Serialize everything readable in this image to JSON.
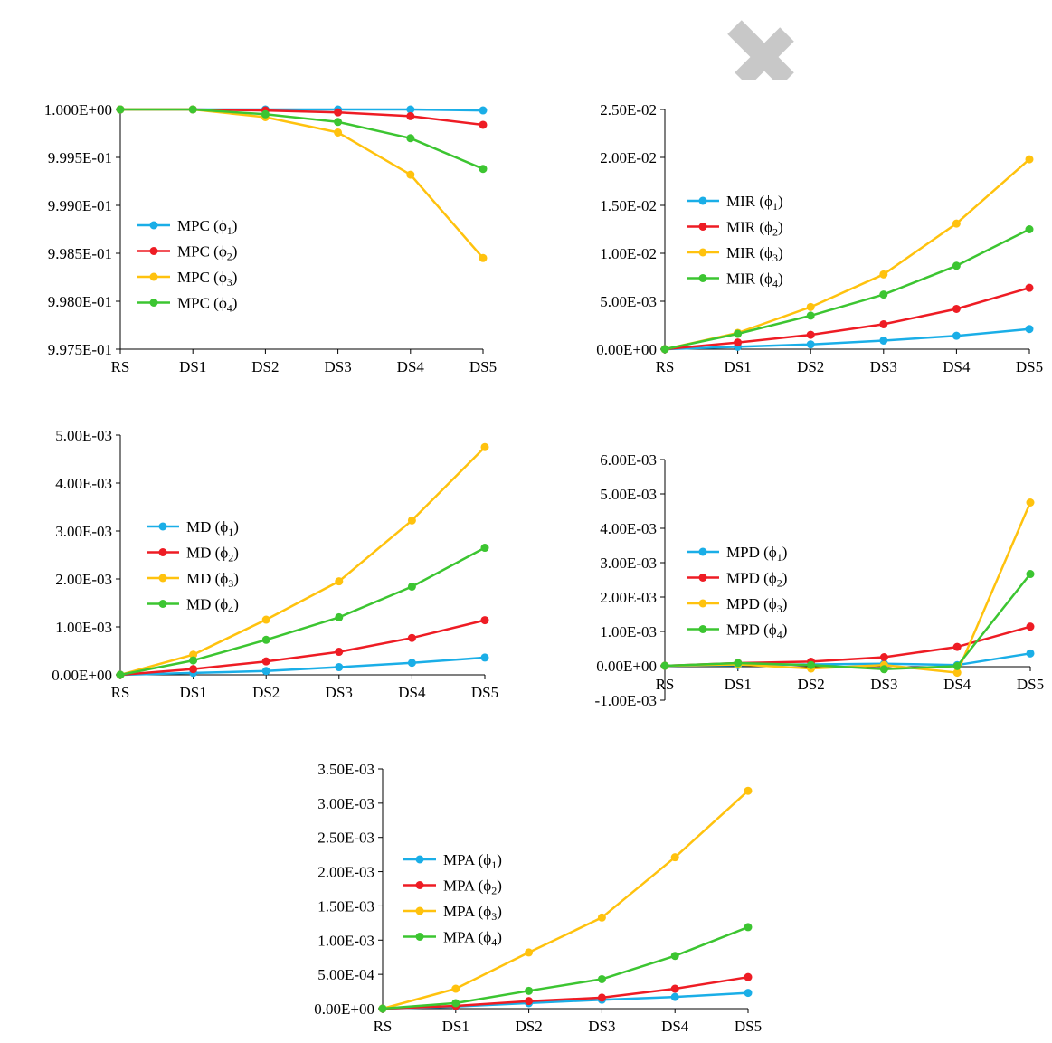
{
  "decoration": {
    "name": "partial-cross-mark",
    "color": "#c8c8c8"
  },
  "chart_data": [
    {
      "type": "line",
      "categories": [
        "RS",
        "DS1",
        "DS2",
        "DS3",
        "DS4",
        "DS5"
      ],
      "ylim": [
        0.9975,
        1.0
      ],
      "yticks": [
        0.9975,
        0.998,
        0.9985,
        0.999,
        0.9995,
        1.0
      ],
      "ytick_labels": [
        "9.975E-01",
        "9.980E-01",
        "9.985E-01",
        "9.990E-01",
        "9.995E-01",
        "1.000E+00"
      ],
      "legend_position": "left-middle",
      "grid": false,
      "series": [
        {
          "name": "MPC (ϕ1)",
          "base": "MPC (ϕ",
          "sub": "1",
          "color": "#1aaee7",
          "values": [
            1.0,
            1.0,
            1.0,
            1.0,
            1.0,
            0.99999
          ]
        },
        {
          "name": "MPC (ϕ2)",
          "base": "MPC (ϕ",
          "sub": "2",
          "color": "#ee1c24",
          "values": [
            1.0,
            1.0,
            0.99999,
            0.99997,
            0.99993,
            0.99984
          ]
        },
        {
          "name": "MPC (ϕ3)",
          "base": "MPC (ϕ",
          "sub": "3",
          "color": "#ffc20e",
          "values": [
            1.0,
            1.0,
            0.99992,
            0.99976,
            0.99932,
            0.99845
          ]
        },
        {
          "name": "MPC (ϕ4)",
          "base": "MPC (ϕ",
          "sub": "4",
          "color": "#3cc531",
          "values": [
            1.0,
            1.0,
            0.99995,
            0.99987,
            0.9997,
            0.99938
          ]
        }
      ]
    },
    {
      "type": "line",
      "categories": [
        "RS",
        "DS1",
        "DS2",
        "DS3",
        "DS4",
        "DS5"
      ],
      "ylim": [
        0,
        0.025
      ],
      "yticks": [
        0,
        0.005,
        0.01,
        0.015,
        0.02,
        0.025
      ],
      "ytick_labels": [
        "0.00E+00",
        "5.00E-03",
        "1.00E-02",
        "1.50E-02",
        "2.00E-02",
        "2.50E-02"
      ],
      "legend_position": "left-middle",
      "grid": false,
      "series": [
        {
          "name": "MIR (ϕ1)",
          "base": "MIR (ϕ",
          "sub": "1",
          "color": "#1aaee7",
          "values": [
            0,
            0.00025,
            0.0005,
            0.0009,
            0.0014,
            0.0021
          ]
        },
        {
          "name": "MIR (ϕ2)",
          "base": "MIR (ϕ",
          "sub": "2",
          "color": "#ee1c24",
          "values": [
            0,
            0.0007,
            0.0015,
            0.0026,
            0.0042,
            0.0064
          ]
        },
        {
          "name": "MIR (ϕ3)",
          "base": "MIR (ϕ",
          "sub": "3",
          "color": "#ffc20e",
          "values": [
            0,
            0.0017,
            0.0044,
            0.0078,
            0.0131,
            0.0198
          ]
        },
        {
          "name": "MIR (ϕ4)",
          "base": "MIR (ϕ",
          "sub": "4",
          "color": "#3cc531",
          "values": [
            0,
            0.0016,
            0.0035,
            0.0057,
            0.0087,
            0.0125
          ]
        }
      ]
    },
    {
      "type": "line",
      "categories": [
        "RS",
        "DS1",
        "DS2",
        "DS3",
        "DS4",
        "DS5"
      ],
      "ylim": [
        0,
        0.005
      ],
      "yticks": [
        0,
        0.001,
        0.002,
        0.003,
        0.004,
        0.005
      ],
      "ytick_labels": [
        "0.00E+00",
        "1.00E-03",
        "2.00E-03",
        "3.00E-03",
        "4.00E-03",
        "5.00E-03"
      ],
      "legend_position": "left-middle",
      "grid": false,
      "series": [
        {
          "name": "MD (ϕ1)",
          "base": "MD (ϕ",
          "sub": "1",
          "color": "#1aaee7",
          "values": [
            0,
            4e-05,
            8e-05,
            0.00016,
            0.00025,
            0.00036
          ]
        },
        {
          "name": "MD (ϕ2)",
          "base": "MD (ϕ",
          "sub": "2",
          "color": "#ee1c24",
          "values": [
            0,
            0.00012,
            0.00028,
            0.00048,
            0.00077,
            0.00114
          ]
        },
        {
          "name": "MD (ϕ3)",
          "base": "MD (ϕ",
          "sub": "3",
          "color": "#ffc20e",
          "values": [
            0,
            0.00042,
            0.00115,
            0.00195,
            0.00322,
            0.00475
          ]
        },
        {
          "name": "MD (ϕ4)",
          "base": "MD (ϕ",
          "sub": "4",
          "color": "#3cc531",
          "values": [
            0,
            0.0003,
            0.00073,
            0.0012,
            0.00184,
            0.00265
          ]
        }
      ]
    },
    {
      "type": "line",
      "categories": [
        "RS",
        "DS1",
        "DS2",
        "DS3",
        "DS4",
        "DS5"
      ],
      "ylim": [
        -0.001,
        0.006
      ],
      "yticks": [
        -0.001,
        0,
        0.001,
        0.002,
        0.003,
        0.004,
        0.005,
        0.006
      ],
      "ytick_labels": [
        "-1.00E-03",
        "0.00E+00",
        "1.00E-03",
        "2.00E-03",
        "3.00E-03",
        "4.00E-03",
        "5.00E-03",
        "6.00E-03"
      ],
      "legend_position": "left-middle",
      "grid": false,
      "series": [
        {
          "name": "MPD (ϕ1)",
          "base": "MPD (ϕ",
          "sub": "1",
          "color": "#1aaee7",
          "values": [
            0,
            2e-05,
            4e-05,
            6e-05,
            2e-05,
            0.00036
          ]
        },
        {
          "name": "MPD (ϕ2)",
          "base": "MPD (ϕ",
          "sub": "2",
          "color": "#ee1c24",
          "values": [
            0,
            8e-05,
            0.00012,
            0.00025,
            0.00055,
            0.00114
          ]
        },
        {
          "name": "MPD (ϕ3)",
          "base": "MPD (ϕ",
          "sub": "3",
          "color": "#ffc20e",
          "values": [
            0,
            4e-05,
            -8e-05,
            2e-05,
            -0.0002,
            0.00475
          ]
        },
        {
          "name": "MPD (ϕ4)",
          "base": "MPD (ϕ",
          "sub": "4",
          "color": "#3cc531",
          "values": [
            0,
            8e-05,
            2e-05,
            -0.0001,
            -1e-05,
            0.00267
          ]
        }
      ]
    },
    {
      "type": "line",
      "categories": [
        "RS",
        "DS1",
        "DS2",
        "DS3",
        "DS4",
        "DS5"
      ],
      "ylim": [
        0,
        0.0035
      ],
      "yticks": [
        0,
        0.0005,
        0.001,
        0.0015,
        0.002,
        0.0025,
        0.003,
        0.0035
      ],
      "ytick_labels": [
        "0.00E+00",
        "5.00E-04",
        "1.00E-03",
        "1.50E-03",
        "2.00E-03",
        "2.50E-03",
        "3.00E-03",
        "3.50E-03"
      ],
      "legend_position": "left-middle",
      "grid": false,
      "series": [
        {
          "name": "MPA (ϕ1)",
          "base": "MPA (ϕ",
          "sub": "1",
          "color": "#1aaee7",
          "values": [
            0,
            3e-05,
            8e-05,
            0.00013,
            0.00017,
            0.00023
          ]
        },
        {
          "name": "MPA (ϕ2)",
          "base": "MPA (ϕ",
          "sub": "2",
          "color": "#ee1c24",
          "values": [
            0,
            4e-05,
            0.00011,
            0.00016,
            0.00029,
            0.00046
          ]
        },
        {
          "name": "MPA (ϕ3)",
          "base": "MPA (ϕ",
          "sub": "3",
          "color": "#ffc20e",
          "values": [
            0,
            0.00029,
            0.00082,
            0.00133,
            0.00221,
            0.00318
          ]
        },
        {
          "name": "MPA (ϕ4)",
          "base": "MPA (ϕ",
          "sub": "4",
          "color": "#3cc531",
          "values": [
            0,
            8e-05,
            0.00026,
            0.00043,
            0.00077,
            0.00119
          ]
        }
      ]
    }
  ]
}
